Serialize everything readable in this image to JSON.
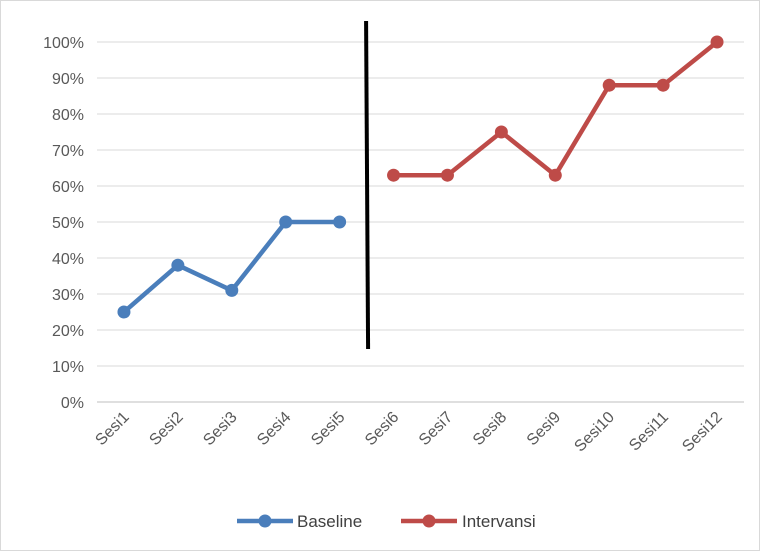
{
  "chart_data": {
    "type": "line",
    "categories": [
      "Sesi1",
      "Sesi2",
      "Sesi3",
      "Sesi4",
      "Sesi5",
      "Sesi6",
      "Sesi7",
      "Sesi8",
      "Sesi9",
      "Sesi10",
      "Sesi11",
      "Sesi12"
    ],
    "series": [
      {
        "name": "Baseline",
        "color": "#4a7ebb",
        "values": [
          25,
          38,
          31,
          50,
          50,
          null,
          null,
          null,
          null,
          null,
          null,
          null
        ]
      },
      {
        "name": "Intervansi",
        "color": "#be4b48",
        "values": [
          null,
          null,
          null,
          null,
          null,
          63,
          63,
          75,
          63,
          88,
          88,
          100
        ]
      }
    ],
    "yticks": [
      "0%",
      "10%",
      "20%",
      "30%",
      "40%",
      "50%",
      "60%",
      "70%",
      "80%",
      "90%",
      "100%"
    ],
    "ylim": [
      0,
      100
    ],
    "phase_divider_after_category": "Sesi5",
    "grid": true,
    "legend_position": "bottom",
    "title": "",
    "xlabel": "",
    "ylabel": ""
  }
}
